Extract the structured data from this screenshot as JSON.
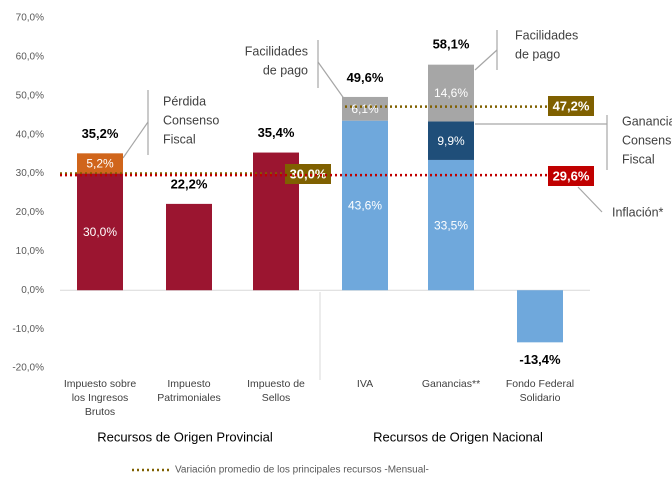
{
  "chart_data": {
    "type": "bar",
    "stacked": true,
    "categories": [
      [
        "Impuesto sobre",
        "los Ingresos",
        "Brutos"
      ],
      [
        "Impuesto",
        "Patrimoniales"
      ],
      [
        "Impuesto de",
        "Sellos"
      ],
      [
        "IVA"
      ],
      [
        "Ganancias**"
      ],
      [
        "Fondo Federal",
        "Solidario"
      ]
    ],
    "series": [
      {
        "values": [
          30.0,
          22.2,
          35.4,
          43.6,
          33.5,
          -13.4
        ],
        "value_labels": [
          "30,0%",
          null,
          null,
          "43,6%",
          "33,5%",
          null
        ],
        "colors": [
          "#9b1530",
          "#9b1530",
          "#9b1530",
          "#6fa8dc",
          "#6fa8dc",
          "#6fa8dc"
        ]
      },
      {
        "values": [
          5.2,
          null,
          null,
          null,
          9.9,
          null
        ],
        "value_labels": [
          "5,2%",
          null,
          null,
          null,
          "9,9%",
          null
        ],
        "colors": [
          "#d0651b",
          null,
          null,
          null,
          "#1f4e79",
          null
        ]
      },
      {
        "values": [
          null,
          null,
          null,
          6.1,
          14.6,
          null
        ],
        "value_labels": [
          null,
          null,
          null,
          "6,1%",
          "14,6%",
          null
        ],
        "colors": [
          null,
          null,
          null,
          "#a6a6a6",
          "#a6a6a6",
          null
        ]
      }
    ],
    "totals": {
      "values": [
        35.2,
        22.2,
        35.4,
        49.6,
        58.1,
        -13.4
      ],
      "value_labels": [
        "35,2%",
        "22,2%",
        "35,4%",
        "49,6%",
        "58,1%",
        "-13,4%"
      ]
    },
    "reference_lines": [
      {
        "value": 30.0,
        "label": "30,0%",
        "color": "#7f6000"
      },
      {
        "value": 47.2,
        "label": "47,2%",
        "color": "#7f6000"
      },
      {
        "value": 29.6,
        "label": "29,6%",
        "color": "#c00000",
        "name": "Inflación*"
      }
    ],
    "annotations": [
      [
        "Pérdida",
        "Consenso",
        "Fiscal"
      ],
      [
        "Facilidades",
        "de pago"
      ],
      [
        "Facilidades",
        "de pago"
      ],
      [
        "Ganancia",
        "Consenso",
        "Fiscal"
      ]
    ],
    "groups": [
      "Recursos de Origen Provincial",
      "Recursos de Origen Nacional"
    ],
    "legend": "Variación promedio de los principales recursos -Mensual-",
    "ylim": [
      -20,
      70
    ],
    "yticks": [
      {
        "value": -20,
        "label": "-20,0%"
      },
      {
        "value": -10,
        "label": "-10,0%"
      },
      {
        "value": 0,
        "label": "0,0%"
      },
      {
        "value": 10,
        "label": "10,0%"
      },
      {
        "value": 20,
        "label": "20,0%"
      },
      {
        "value": 30,
        "label": "30,0%"
      },
      {
        "value": 40,
        "label": "40,0%"
      },
      {
        "value": 50,
        "label": "50,0%"
      },
      {
        "value": 60,
        "label": "60,0%"
      },
      {
        "value": 70,
        "label": "70,0%"
      }
    ]
  }
}
